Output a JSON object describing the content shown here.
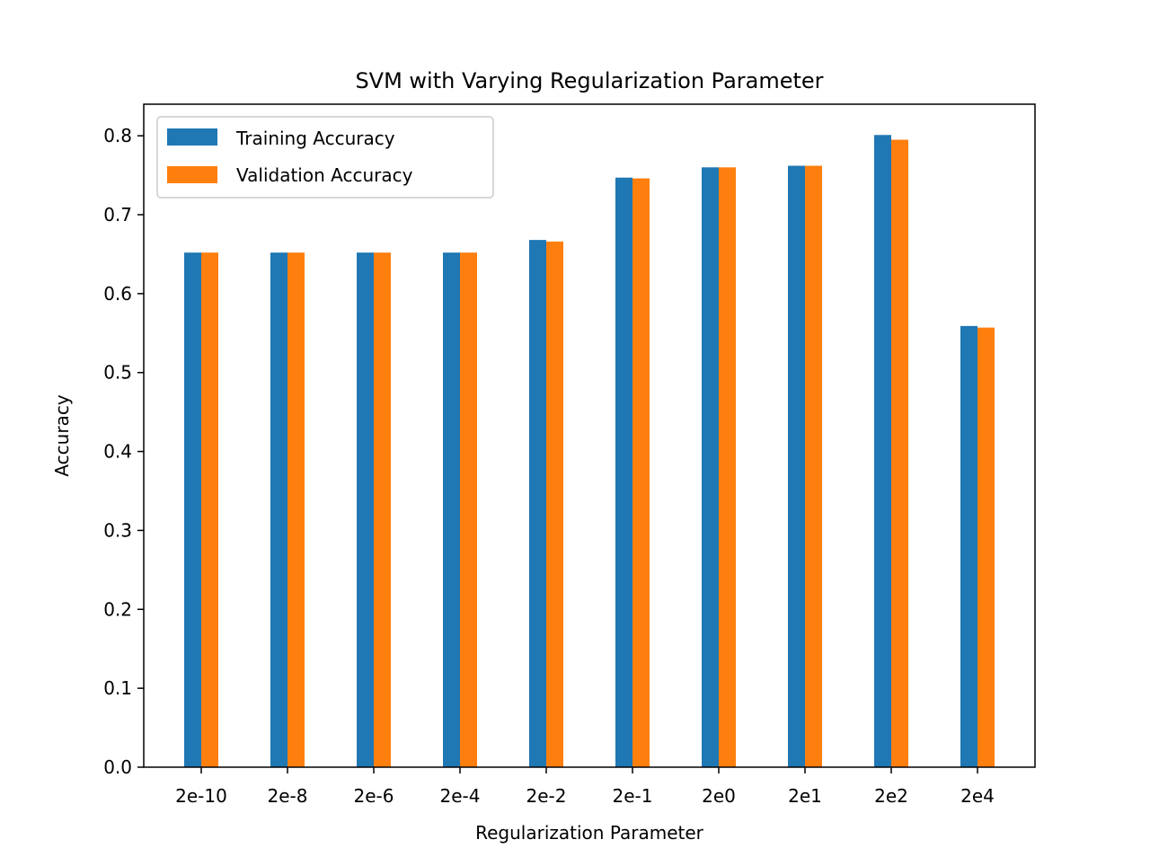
{
  "chart_data": {
    "type": "bar",
    "title": "SVM with Varying Regularization Parameter",
    "xlabel": "Regularization Parameter",
    "ylabel": "Accuracy",
    "ylim": [
      0,
      0.84
    ],
    "yticks": [
      0.0,
      0.1,
      0.2,
      0.3,
      0.4,
      0.5,
      0.6,
      0.7,
      0.8
    ],
    "ytick_labels": [
      "0.0",
      "0.1",
      "0.2",
      "0.3",
      "0.4",
      "0.5",
      "0.6",
      "0.7",
      "0.8"
    ],
    "grid": false,
    "legend_position": "top-left",
    "categories": [
      "2e-10",
      "2e-8",
      "2e-6",
      "2e-4",
      "2e-2",
      "2e-1",
      "2e0",
      "2e1",
      "2e2",
      "2e4"
    ],
    "series": [
      {
        "name": "Training Accuracy",
        "color": "#1f77b4",
        "values": [
          0.652,
          0.652,
          0.652,
          0.652,
          0.668,
          0.747,
          0.76,
          0.762,
          0.801,
          0.559
        ]
      },
      {
        "name": "Validation Accuracy",
        "color": "#ff7f0e",
        "values": [
          0.652,
          0.652,
          0.652,
          0.652,
          0.666,
          0.746,
          0.76,
          0.762,
          0.795,
          0.557
        ]
      }
    ]
  }
}
